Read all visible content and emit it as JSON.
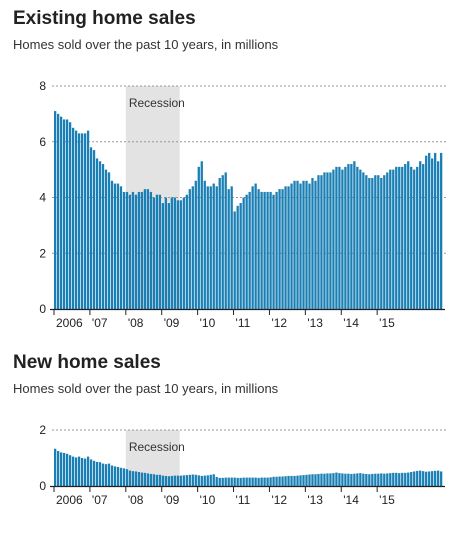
{
  "colors": {
    "bar": "#1a7fb4",
    "recession": "#e3e3e3",
    "grid": "#999999",
    "axis": "#222222",
    "text": "#222222"
  },
  "chart_data": [
    {
      "type": "bar",
      "title": "Existing home sales",
      "subtitle": "Homes sold over the past 10 years, in millions",
      "xlabel": "",
      "ylabel": "",
      "ylim": [
        0,
        8
      ],
      "yticks": [
        "0",
        "2",
        "4",
        "6",
        "8"
      ],
      "x_tick_labels": [
        "2006",
        "'07",
        "'08",
        "'09",
        "'10",
        "'11",
        "'12",
        "'13",
        "'14",
        "'15"
      ],
      "x_range": [
        "2006-01",
        "2015-10"
      ],
      "recession_label": "Recession",
      "recession": [
        "2008-01",
        "2009-06"
      ],
      "grid": "dotted horizontal",
      "values": [
        7.1,
        7.0,
        6.9,
        6.8,
        6.8,
        6.7,
        6.5,
        6.4,
        6.3,
        6.3,
        6.3,
        6.4,
        5.8,
        5.7,
        5.4,
        5.3,
        5.2,
        5.0,
        4.9,
        4.6,
        4.5,
        4.5,
        4.4,
        4.2,
        4.2,
        4.1,
        4.2,
        4.1,
        4.2,
        4.2,
        4.3,
        4.3,
        4.2,
        4.0,
        4.1,
        4.1,
        3.8,
        4.0,
        3.8,
        4.0,
        4.0,
        3.9,
        3.9,
        4.0,
        4.1,
        4.3,
        4.4,
        4.6,
        5.1,
        5.3,
        4.6,
        4.4,
        4.4,
        4.5,
        4.4,
        4.7,
        4.8,
        4.9,
        4.3,
        4.4,
        3.5,
        3.7,
        3.8,
        4.0,
        4.1,
        4.2,
        4.4,
        4.5,
        4.3,
        4.2,
        4.2,
        4.2,
        4.2,
        4.1,
        4.2,
        4.3,
        4.3,
        4.4,
        4.4,
        4.5,
        4.6,
        4.6,
        4.5,
        4.6,
        4.6,
        4.5,
        4.7,
        4.6,
        4.8,
        4.8,
        4.9,
        4.9,
        4.9,
        5.0,
        5.1,
        5.1,
        5.0,
        5.1,
        5.2,
        5.2,
        5.3,
        5.1,
        5.0,
        4.9,
        4.8,
        4.7,
        4.7,
        4.8,
        4.8,
        4.7,
        4.8,
        4.9,
        5.0,
        5.0,
        5.1,
        5.1,
        5.1,
        5.2,
        5.3,
        5.1,
        5.0,
        5.1,
        5.3,
        5.2,
        5.5,
        5.6,
        5.4,
        5.6,
        5.3,
        5.6
      ]
    },
    {
      "type": "bar",
      "title": "New home sales",
      "subtitle": "Homes sold over the past 10 years, in millions",
      "xlabel": "",
      "ylabel": "",
      "ylim": [
        0,
        2
      ],
      "yticks": [
        "0",
        "2"
      ],
      "x_tick_labels": [
        "2006",
        "'07",
        "'08",
        "'09",
        "'10",
        "'11",
        "'12",
        "'13",
        "'14",
        "'15"
      ],
      "x_range": [
        "2006-01",
        "2015-10"
      ],
      "recession_label": "Recession",
      "recession": [
        "2008-01",
        "2009-06"
      ],
      "grid": "dotted horizontal",
      "values": [
        1.33,
        1.25,
        1.2,
        1.18,
        1.15,
        1.1,
        1.05,
        1.02,
        1.05,
        1.0,
        0.98,
        1.05,
        0.95,
        0.9,
        0.86,
        0.85,
        0.8,
        0.78,
        0.8,
        0.73,
        0.7,
        0.68,
        0.65,
        0.63,
        0.6,
        0.55,
        0.53,
        0.52,
        0.5,
        0.48,
        0.47,
        0.45,
        0.43,
        0.42,
        0.4,
        0.4,
        0.37,
        0.36,
        0.35,
        0.36,
        0.37,
        0.37,
        0.37,
        0.38,
        0.39,
        0.4,
        0.41,
        0.4,
        0.38,
        0.36,
        0.37,
        0.38,
        0.4,
        0.42,
        0.32,
        0.29,
        0.29,
        0.3,
        0.3,
        0.3,
        0.3,
        0.29,
        0.29,
        0.3,
        0.3,
        0.3,
        0.3,
        0.3,
        0.29,
        0.3,
        0.3,
        0.3,
        0.31,
        0.33,
        0.33,
        0.34,
        0.34,
        0.35,
        0.36,
        0.36,
        0.36,
        0.37,
        0.38,
        0.39,
        0.4,
        0.41,
        0.42,
        0.42,
        0.43,
        0.44,
        0.44,
        0.45,
        0.45,
        0.46,
        0.48,
        0.46,
        0.45,
        0.44,
        0.44,
        0.43,
        0.44,
        0.45,
        0.46,
        0.44,
        0.43,
        0.42,
        0.43,
        0.44,
        0.44,
        0.45,
        0.44,
        0.45,
        0.46,
        0.47,
        0.47,
        0.46,
        0.47,
        0.47,
        0.48,
        0.5,
        0.52,
        0.54,
        0.55,
        0.53,
        0.51,
        0.52,
        0.53,
        0.54,
        0.55,
        0.52
      ]
    }
  ]
}
